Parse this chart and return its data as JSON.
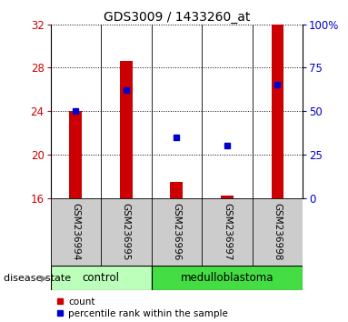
{
  "title": "GDS3009 / 1433260_at",
  "samples": [
    "GSM236994",
    "GSM236995",
    "GSM236996",
    "GSM236997",
    "GSM236998"
  ],
  "red_values": [
    24.0,
    28.6,
    17.5,
    16.2,
    32.0
  ],
  "blue_percentiles": [
    50.0,
    62.0,
    35.0,
    30.0,
    65.0
  ],
  "ylim_left": [
    16,
    32
  ],
  "ylim_right": [
    0,
    100
  ],
  "yticks_left": [
    16,
    20,
    24,
    28,
    32
  ],
  "yticks_right": [
    0,
    25,
    50,
    75,
    100
  ],
  "ytick_labels_right": [
    "0",
    "25",
    "50",
    "75",
    "100%"
  ],
  "bar_color": "#cc0000",
  "dot_color": "#0000cc",
  "bar_width": 0.25,
  "disease_state_labels": [
    "control",
    "medulloblastoma"
  ],
  "control_samples": [
    0,
    1
  ],
  "medulloblastoma_samples": [
    2,
    3,
    4
  ],
  "control_color": "#bbffbb",
  "medulloblastoma_color": "#44dd44",
  "gray_color": "#cccccc",
  "disease_state_label": "disease state",
  "legend_count": "count",
  "legend_percentile": "percentile rank within the sample",
  "title_fontsize": 10,
  "tick_fontsize": 8.5,
  "sample_fontsize": 7.5,
  "ds_fontsize": 8.5,
  "legend_fontsize": 7.5
}
